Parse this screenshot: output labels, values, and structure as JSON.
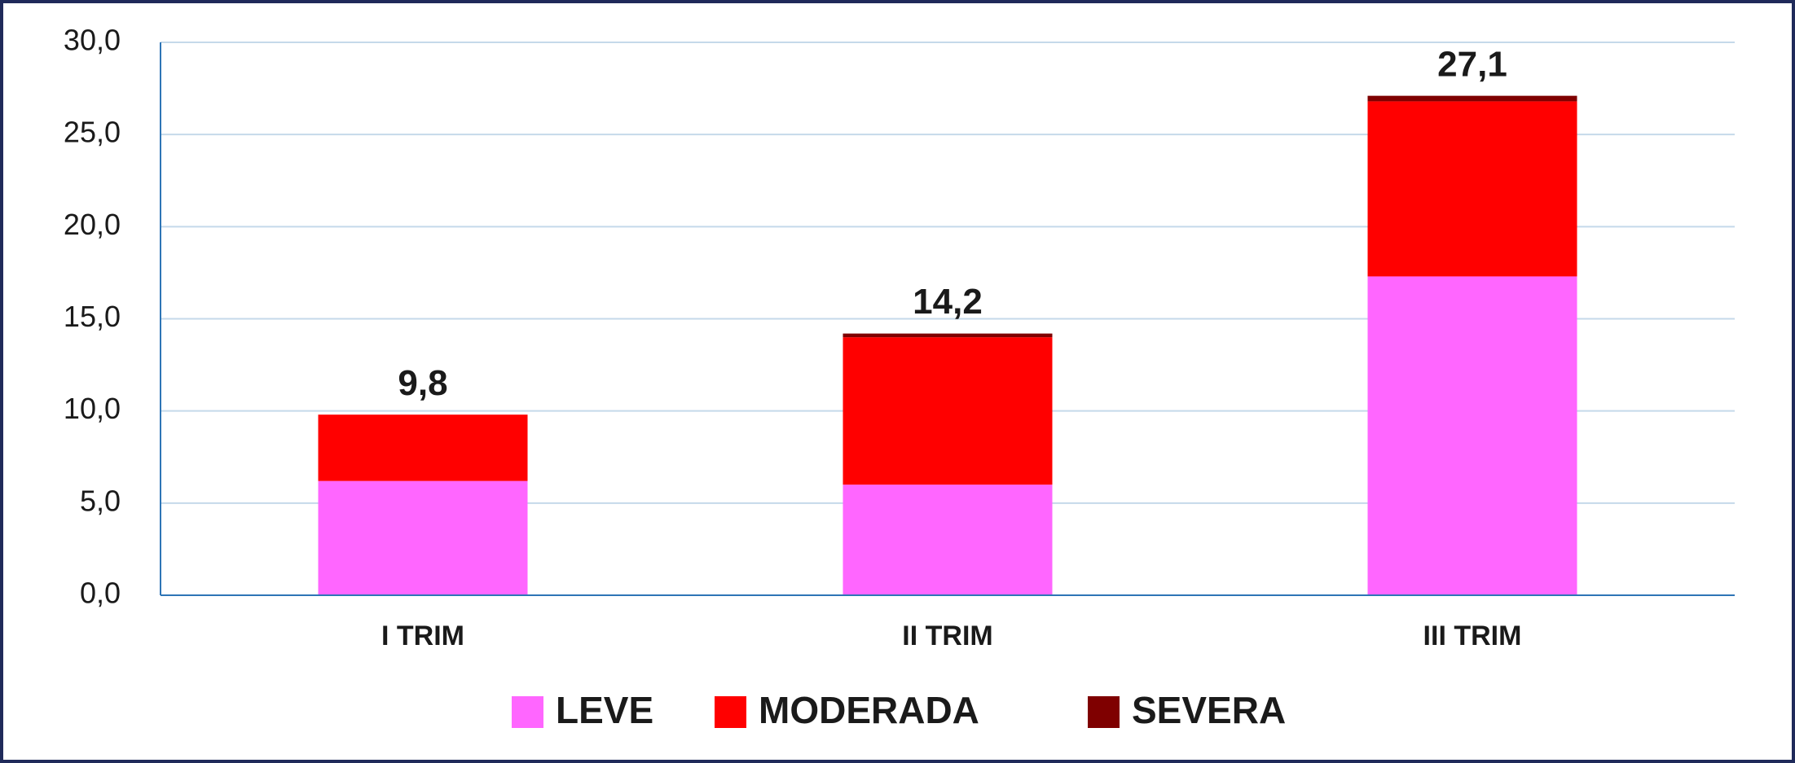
{
  "chart_data": {
    "type": "stacked_bar",
    "categories": [
      "I TRIM",
      "II TRIM",
      "III TRIM"
    ],
    "series": [
      {
        "name": "LEVE",
        "color": "#ff66ff",
        "values": [
          6.2,
          6.0,
          17.3
        ]
      },
      {
        "name": "MODERADA",
        "color": "#ff0000",
        "values": [
          3.6,
          8.0,
          9.5
        ]
      },
      {
        "name": "SEVERA",
        "color": "#7f0000",
        "values": [
          0.0,
          0.2,
          0.3
        ]
      }
    ],
    "totals": [
      9.8,
      14.2,
      27.1
    ],
    "total_labels": [
      "9,8",
      "14,2",
      "27,1"
    ],
    "ylim": [
      0,
      30
    ],
    "yticks": [
      {
        "value": 0,
        "label": "0,0"
      },
      {
        "value": 5,
        "label": "5,0"
      },
      {
        "value": 10,
        "label": "10,0"
      },
      {
        "value": 15,
        "label": "15,0"
      },
      {
        "value": 20,
        "label": "20,0"
      },
      {
        "value": 25,
        "label": "25,0"
      },
      {
        "value": 30,
        "label": "30,0"
      }
    ],
    "grid": true,
    "legend": "bottom"
  }
}
